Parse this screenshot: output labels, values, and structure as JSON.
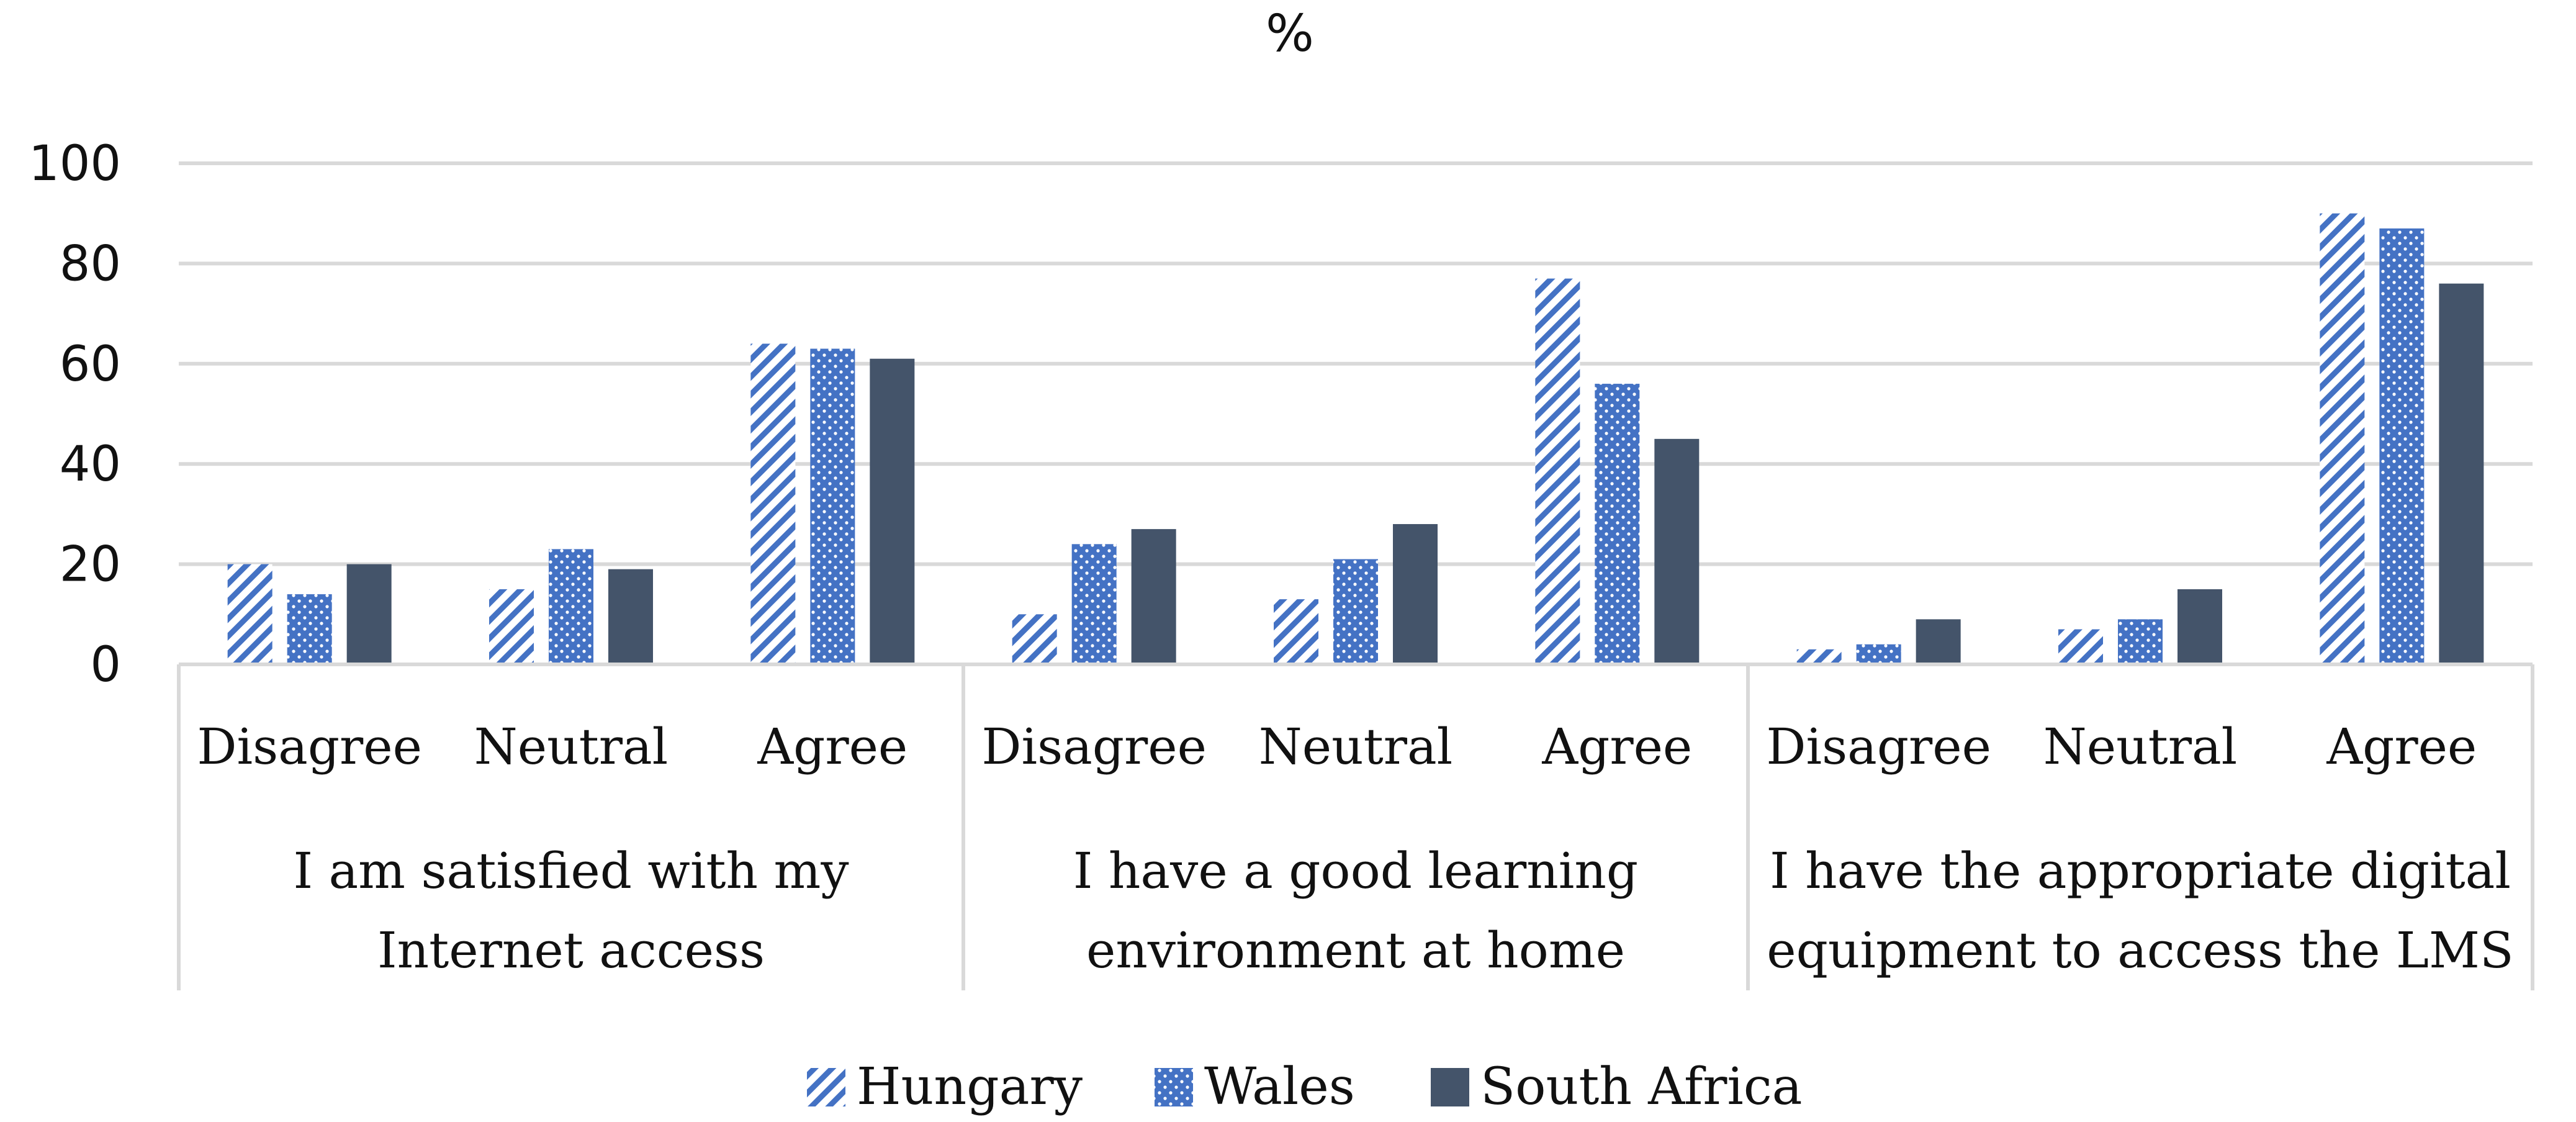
{
  "chart_data": {
    "type": "bar",
    "title": "%",
    "ylim": [
      0,
      100
    ],
    "yticks": [
      "0",
      "20",
      "40",
      "60",
      "80",
      "100"
    ],
    "grid": true,
    "legend_position": "bottom",
    "groups": [
      {
        "label": "I am satisfied with my Internet access",
        "lines": [
          "I am satisfied with my",
          "Internet access"
        ]
      },
      {
        "label": "I have a good learning environment at home",
        "lines": [
          "I have a good learning",
          "environment at home"
        ]
      },
      {
        "label": "I have the appropriate digital equipment to access the LMS",
        "lines": [
          "I have the appropriate digital",
          "equipment to access the LMS"
        ]
      }
    ],
    "categories": [
      "Disagree",
      "Neutral",
      "Agree",
      "Disagree",
      "Neutral",
      "Agree",
      "Disagree",
      "Neutral",
      "Agree"
    ],
    "series": [
      {
        "name": "Hungary",
        "pattern": "hatch",
        "color": "#4472C4",
        "values": [
          20,
          15,
          64,
          10,
          13,
          77,
          3,
          7,
          90
        ]
      },
      {
        "name": "Wales",
        "pattern": "dots",
        "color": "#4472C4",
        "values": [
          14,
          23,
          63,
          24,
          21,
          56,
          4,
          9,
          87
        ]
      },
      {
        "name": "South Africa",
        "pattern": "solid",
        "color": "#44546A",
        "values": [
          20,
          19,
          61,
          27,
          28,
          45,
          9,
          15,
          76
        ]
      }
    ]
  }
}
